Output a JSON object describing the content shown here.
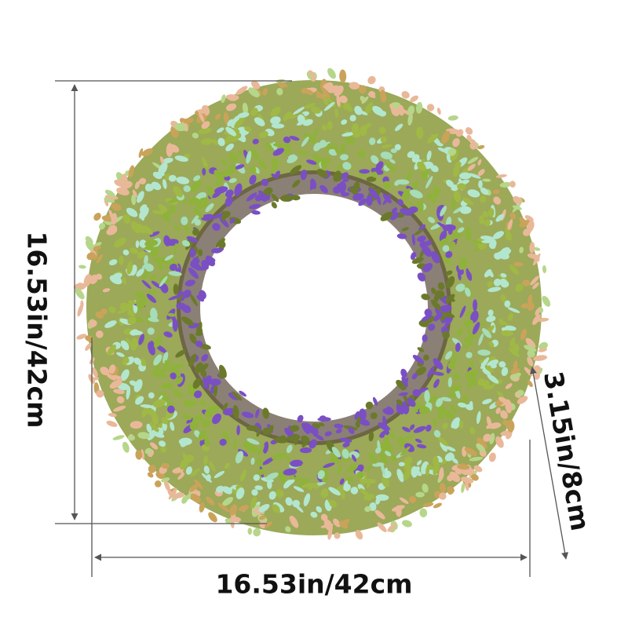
{
  "dimensions": {
    "height": "16.53in/42cm",
    "width": "16.53in/42cm",
    "thickness": "3.15in/8cm"
  }
}
